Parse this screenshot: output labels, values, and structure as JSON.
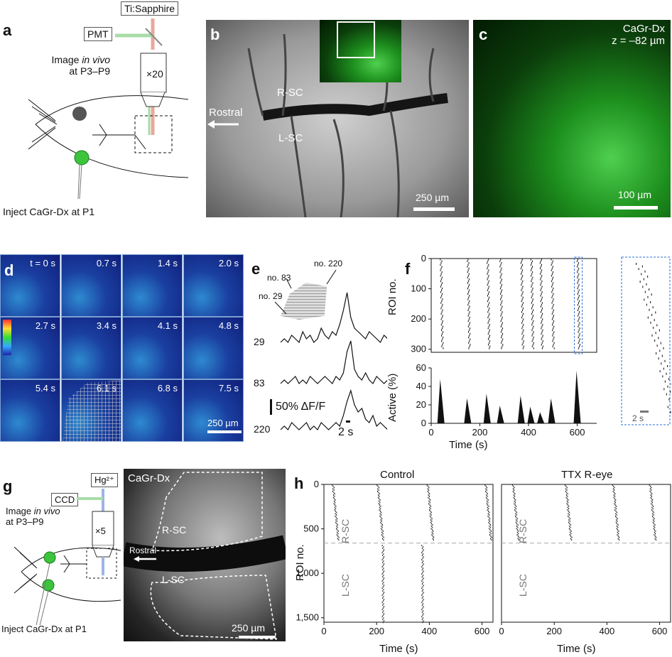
{
  "panel_a": {
    "label": "a",
    "laser": "Ti:Sapphire",
    "detector": "PMT",
    "objective": "×20",
    "image_text_1": "Image",
    "image_text_italic": "in vivo",
    "image_text_2": "at P3–P9",
    "inject": "Inject CaGr-Dx at P1"
  },
  "panel_b": {
    "label": "b",
    "r_sc": "R-SC",
    "l_sc": "L-SC",
    "rostral": "Rostral",
    "scale": "250 µm"
  },
  "panel_c": {
    "label": "c",
    "dye": "CaGr-Dx",
    "depth": "z = –82 µm",
    "scale": "100 µm"
  },
  "panel_d": {
    "label": "d",
    "times": [
      "t = 0 s",
      "0.7 s",
      "1.4 s",
      "2.0 s",
      "2.7 s",
      "3.4 s",
      "4.1 s",
      "4.8 s",
      "5.4 s",
      "6.1 s",
      "6.8 s",
      "7.5 s"
    ],
    "scale": "250 µm"
  },
  "panel_e": {
    "label": "e",
    "roi_labels": [
      "no. 83",
      "no. 220",
      "no. 29"
    ],
    "traces": [
      {
        "id": "29",
        "values": [
          0,
          1,
          0,
          2,
          1,
          0,
          3,
          1,
          2,
          0,
          1,
          4,
          2,
          1,
          3,
          2,
          5,
          9,
          14,
          7,
          4,
          3,
          2,
          1,
          3,
          2,
          1,
          0,
          2,
          1
        ]
      },
      {
        "id": "83",
        "values": [
          0,
          1,
          0,
          1,
          2,
          0,
          1,
          0,
          2,
          1,
          0,
          1,
          2,
          1,
          0,
          2,
          1,
          3,
          9,
          12,
          4,
          2,
          1,
          3,
          1,
          0,
          2,
          1,
          0,
          1
        ]
      },
      {
        "id": "220",
        "values": [
          0,
          1,
          0,
          2,
          1,
          0,
          1,
          2,
          0,
          1,
          0,
          2,
          1,
          0,
          1,
          2,
          1,
          4,
          8,
          11,
          7,
          5,
          6,
          3,
          2,
          4,
          1,
          2,
          1,
          0
        ]
      }
    ],
    "scalebar_y": "50% ΔF/F",
    "scalebar_x": "2 s"
  },
  "panel_f": {
    "label": "f",
    "ylabel_top": "ROI no.",
    "ylabel_bottom": "Active (%)",
    "xlabel": "Time (s)",
    "inset_scale": "2 s"
  },
  "panel_g": {
    "label": "g",
    "lamp": "Hg²⁺",
    "camera": "CCD",
    "objective": "×5",
    "image_text_1": "Image",
    "image_text_italic": "in vivo",
    "image_text_2": "at P3–P9",
    "inject": "Inject CaGr-Dx at P1",
    "dye": "CaGr-Dx",
    "r_sc": "R-SC",
    "l_sc": "L-SC",
    "rostral": "Rostral",
    "scale": "250 µm"
  },
  "panel_h": {
    "label": "h",
    "title_left": "Control",
    "title_right": "TTX R-eye",
    "ylabel": "ROI no.",
    "xlabel": "Time (s)",
    "r_sc": "R-SC",
    "l_sc": "L-SC"
  },
  "chart_data": [
    {
      "type": "scatter",
      "panel": "f-raster",
      "xlabel": "",
      "ylabel": "ROI no.",
      "xlim": [
        0,
        680
      ],
      "ylim": [
        0,
        310
      ],
      "y_ticks": [
        0,
        100,
        200,
        300
      ],
      "event_times": [
        40,
        150,
        230,
        285,
        370,
        410,
        450,
        495,
        600
      ]
    },
    {
      "type": "bar",
      "panel": "f-activity",
      "xlabel": "Time (s)",
      "ylabel": "Active (%)",
      "xlim": [
        0,
        680
      ],
      "ylim": [
        0,
        60
      ],
      "x_ticks": [
        0,
        200,
        400,
        600
      ],
      "y_ticks": [
        0,
        20,
        40,
        60
      ],
      "x": [
        40,
        150,
        230,
        285,
        370,
        410,
        450,
        495,
        600
      ],
      "values": [
        48,
        27,
        32,
        19,
        30,
        18,
        12,
        27,
        57
      ]
    },
    {
      "type": "scatter",
      "panel": "h-control",
      "title": "Control",
      "xlabel": "Time (s)",
      "ylabel": "ROI no.",
      "xlim": [
        0,
        620
      ],
      "ylim": [
        0,
        1550
      ],
      "x_ticks": [
        0,
        200,
        400,
        600
      ],
      "y_ticks": [
        "0",
        "500",
        "1,000",
        "1,500"
      ],
      "r_sc_events": [
        30,
        200,
        390,
        610
      ],
      "l_sc_events": [
        220,
        370
      ]
    },
    {
      "type": "scatter",
      "panel": "h-ttx",
      "title": "TTX R-eye",
      "xlabel": "Time (s)",
      "ylabel": "",
      "xlim": [
        0,
        620
      ],
      "ylim": [
        0,
        1550
      ],
      "x_ticks": [
        0,
        200,
        400,
        600
      ],
      "r_sc_events": [
        40,
        240,
        420,
        560
      ],
      "l_sc_events": []
    }
  ]
}
